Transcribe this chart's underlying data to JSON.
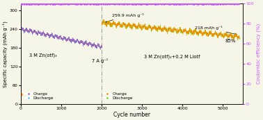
{
  "title": "",
  "xlabel": "Cycle number",
  "ylabel_left": "Specific capacity (mAh g⁻¹)",
  "ylabel_right": "Coulombic efficiency (%)",
  "xlim": [
    0,
    5500
  ],
  "ylim_left": [
    0,
    320
  ],
  "ylim_right": [
    0,
    100
  ],
  "yticks_left": [
    0,
    60,
    120,
    180,
    240,
    300
  ],
  "yticks_right": [
    0,
    20,
    40,
    60,
    80,
    100
  ],
  "xticks": [
    0,
    1000,
    2000,
    3000,
    4000,
    5000
  ],
  "vline_x": 2000,
  "region1_text": "3 M Zn(otf)₂",
  "region2_text": "7 A g⁻¹",
  "region3_text": "3 M Zn(otf)₂+0.2 M Liotf",
  "annotation1_text": "259.9 mAh g⁻¹",
  "annotation2_text": "218 mAh g⁻¹",
  "annotation3_text": "85%",
  "colors": {
    "charge1": "#9966bb",
    "discharge1": "#55ccee",
    "charge2": "#ff8800",
    "discharge2": "#55ee00",
    "coulombic": "#cc55ff"
  },
  "background": "#f5f5e8"
}
